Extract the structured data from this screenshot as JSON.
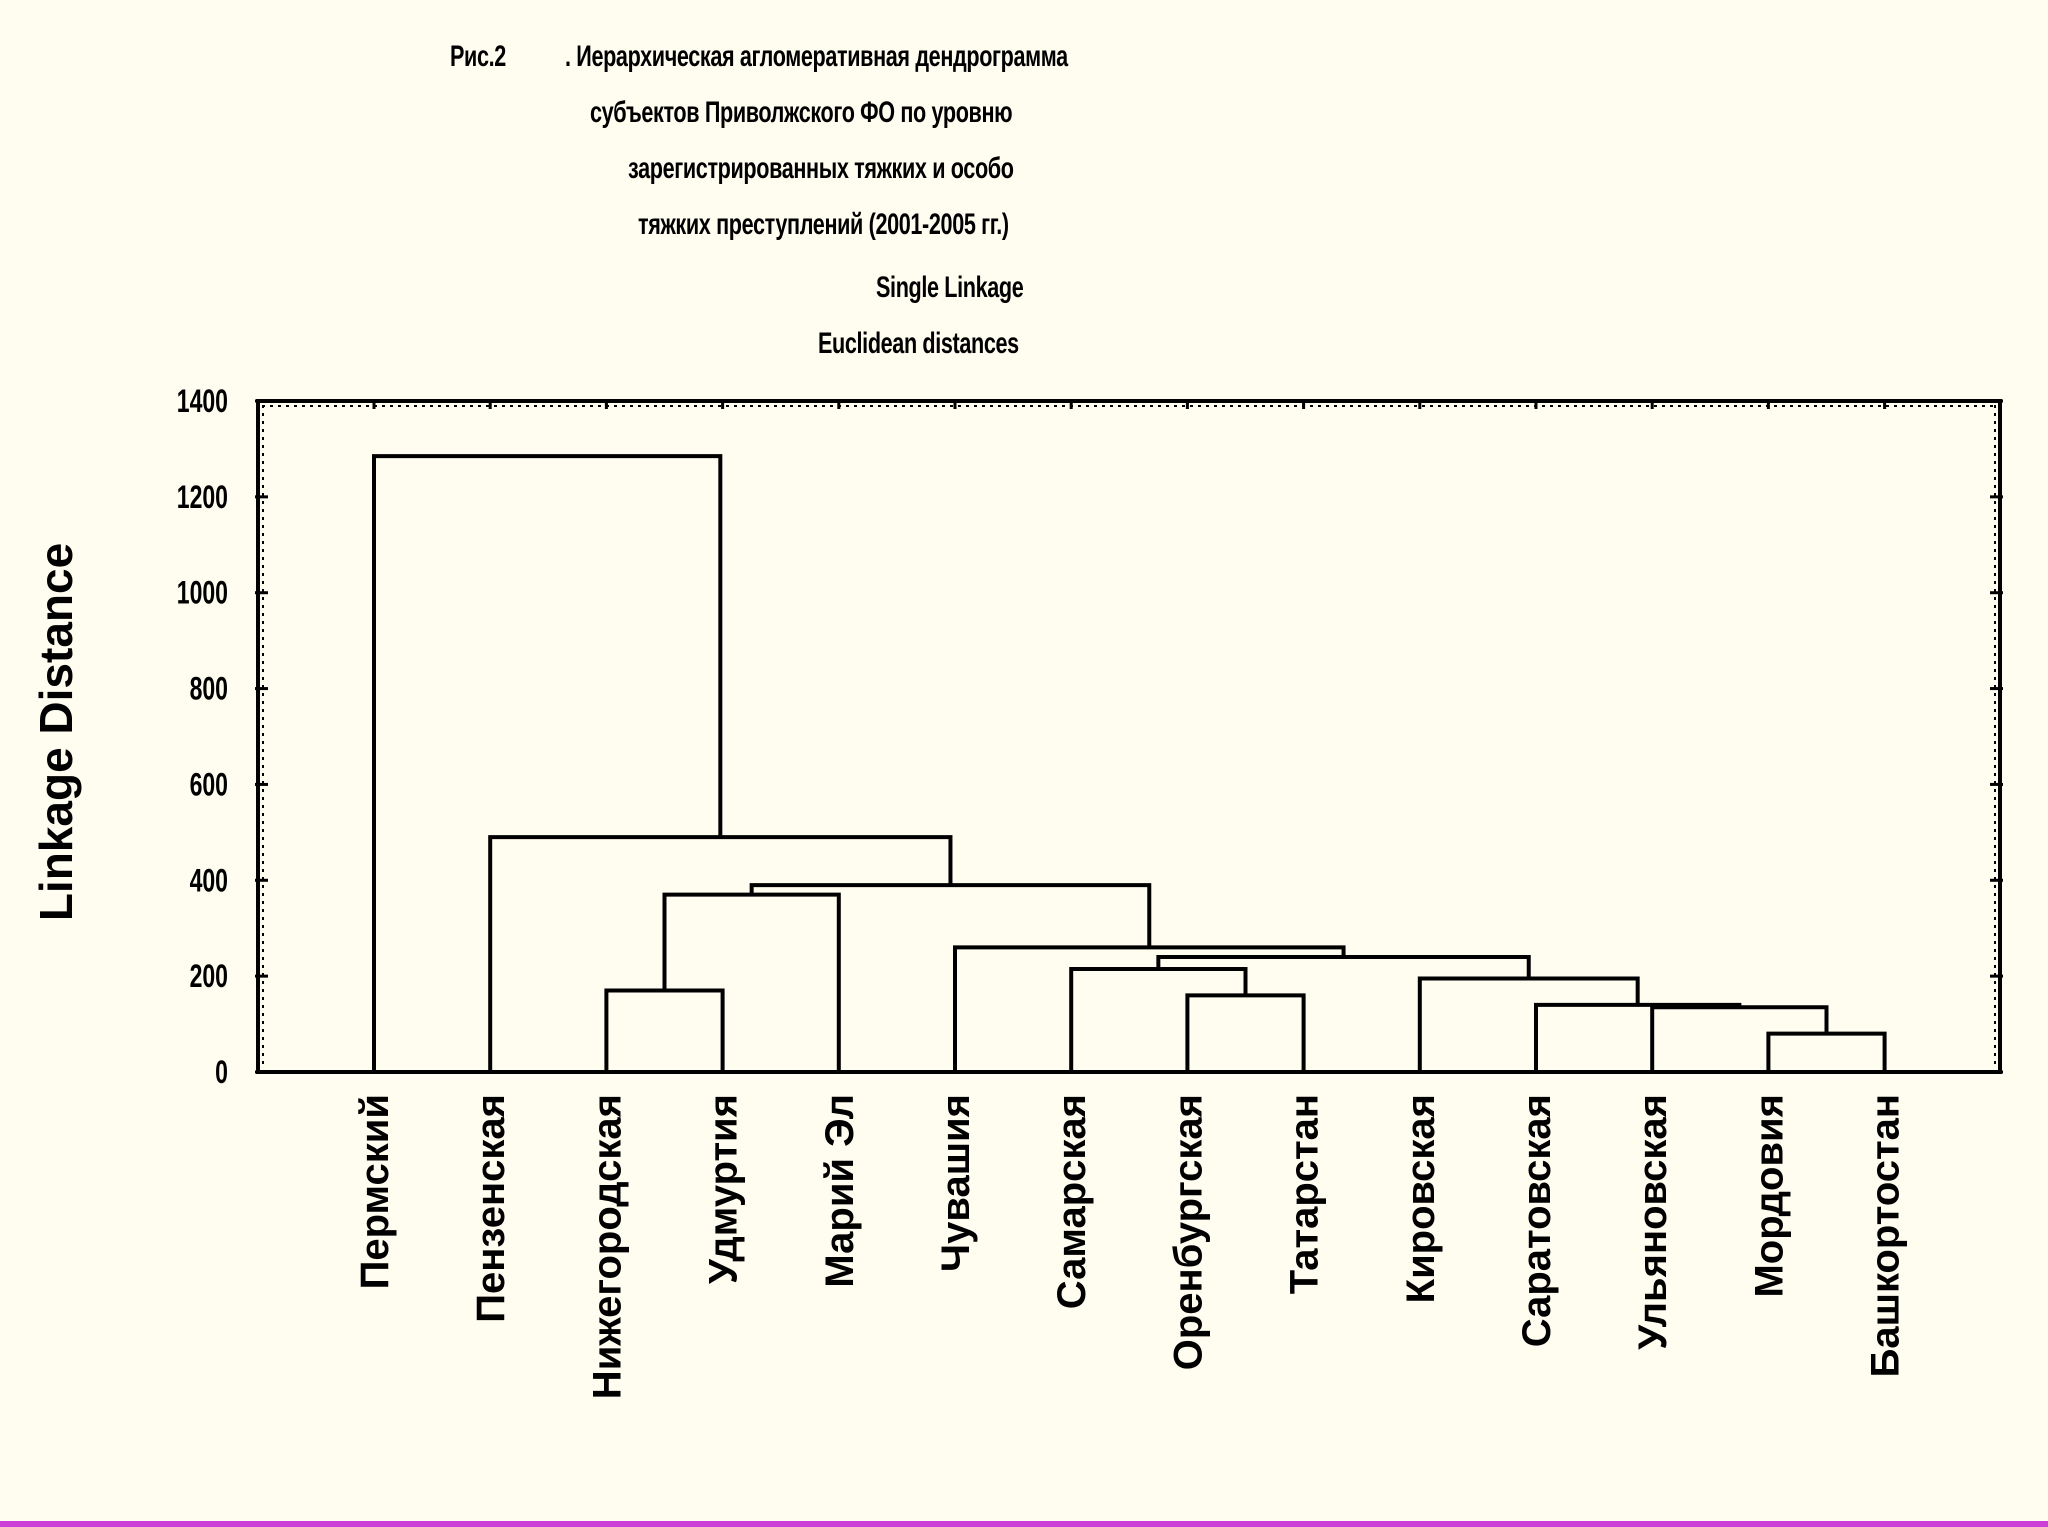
{
  "figure": {
    "number": "Рис.2",
    "title_lines": [
      ".  Иерархическая агломеративная дендрограмма",
      "субъектов Приволжского ФО по уровню",
      "зарегистрированных тяжких и особо",
      "тяжких преступлений (2001-2005 гг.)",
      "Single Linkage",
      "Euclidean distances"
    ]
  },
  "chart_data": {
    "type": "dendrogram",
    "method": "Single Linkage",
    "metric": "Euclidean distances",
    "ylabel": "Linkage Distance",
    "ylim": [
      0,
      1400
    ],
    "yticks": [
      0,
      200,
      400,
      600,
      800,
      1000,
      1200,
      1400
    ],
    "leaves": [
      "Пермский",
      "Пензенская",
      "Нижегородская",
      "Удмуртия",
      "Марий Эл",
      "Чувашия",
      "Самарская",
      "Оренбургская",
      "Татарстан",
      "Кировская",
      "Саратовская",
      "Ульяновская",
      "Мордовия",
      "Башкортостан"
    ],
    "merges": [
      {
        "id": "m1",
        "left": "Мордовия",
        "right": "Башкортостан",
        "height": 80
      },
      {
        "id": "m2",
        "left": "Ульяновская",
        "right": "m1",
        "height": 135
      },
      {
        "id": "m3",
        "left": "Саратовская",
        "right": "m2",
        "height": 140
      },
      {
        "id": "m4",
        "left": "Оренбургская",
        "right": "Татарстан",
        "height": 160
      },
      {
        "id": "m5",
        "left": "Нижегородская",
        "right": "Удмуртия",
        "height": 170
      },
      {
        "id": "m6",
        "left": "Кировская",
        "right": "m3",
        "height": 195
      },
      {
        "id": "m7",
        "left": "Самарская",
        "right": "m4",
        "height": 215
      },
      {
        "id": "m8",
        "left": "m7",
        "right": "m6",
        "height": 240
      },
      {
        "id": "m9",
        "left": "Чувашия",
        "right": "m8",
        "height": 260
      },
      {
        "id": "m10",
        "left": "m5",
        "right": "Марий Эл",
        "height": 370
      },
      {
        "id": "m11",
        "left": "m10",
        "right": "m9",
        "height": 390
      },
      {
        "id": "m12",
        "left": "Пензенская",
        "right": "m11",
        "height": 490
      },
      {
        "id": "m13",
        "left": "Пермский",
        "right": "m12",
        "height": 1285
      }
    ],
    "grid": false,
    "legend": "none"
  }
}
